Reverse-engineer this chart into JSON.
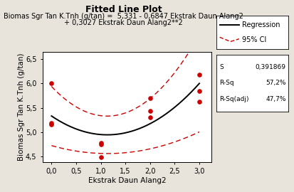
{
  "title": "Fitted Line Plot",
  "subtitle_line1": "Biomas Sgr Tan K.Tnh (g/tan) =  5,331 - 0,6847 Ekstrak Daun Alang2",
  "subtitle_line2": "+ 0,3027 Ekstrak Daun Alang2**2",
  "xlabel": "Ekstrak Daun Alang2",
  "ylabel": "Biomas Sgr Tan K.Tnh (g/tan)",
  "xlim": [
    -0.18,
    3.25
  ],
  "ylim": [
    4.38,
    6.65
  ],
  "xticks": [
    0.0,
    0.5,
    1.0,
    1.5,
    2.0,
    2.5,
    3.0
  ],
  "yticks": [
    4.5,
    5.0,
    5.5,
    6.0,
    6.5
  ],
  "scatter_x": [
    0.0,
    0.0,
    0.0,
    1.0,
    1.0,
    1.0,
    2.0,
    2.0,
    2.0,
    3.0,
    3.0,
    3.0
  ],
  "scatter_y": [
    5.15,
    5.18,
    6.0,
    4.48,
    4.75,
    4.78,
    5.3,
    5.43,
    5.7,
    5.63,
    5.85,
    6.18
  ],
  "a": 5.331,
  "b": -0.6847,
  "c": 0.3027,
  "ci_base": 0.385,
  "ci_quad": 0.175,
  "ci_vertex": 1.13,
  "bg_color": "#e8e4dc",
  "plot_bg_color": "#ffffff",
  "regression_color": "#000000",
  "ci_color": "#cc0000",
  "scatter_color": "#cc0000",
  "stats": [
    [
      "S",
      "0,391869"
    ],
    [
      "R-Sq",
      "57,2%"
    ],
    [
      "R-Sq(adj)",
      "47,7%"
    ]
  ],
  "title_fontsize": 9,
  "subtitle_fontsize": 7,
  "axis_label_fontsize": 7.5,
  "tick_fontsize": 7,
  "legend_fontsize": 7,
  "stats_fontsize": 6.5
}
